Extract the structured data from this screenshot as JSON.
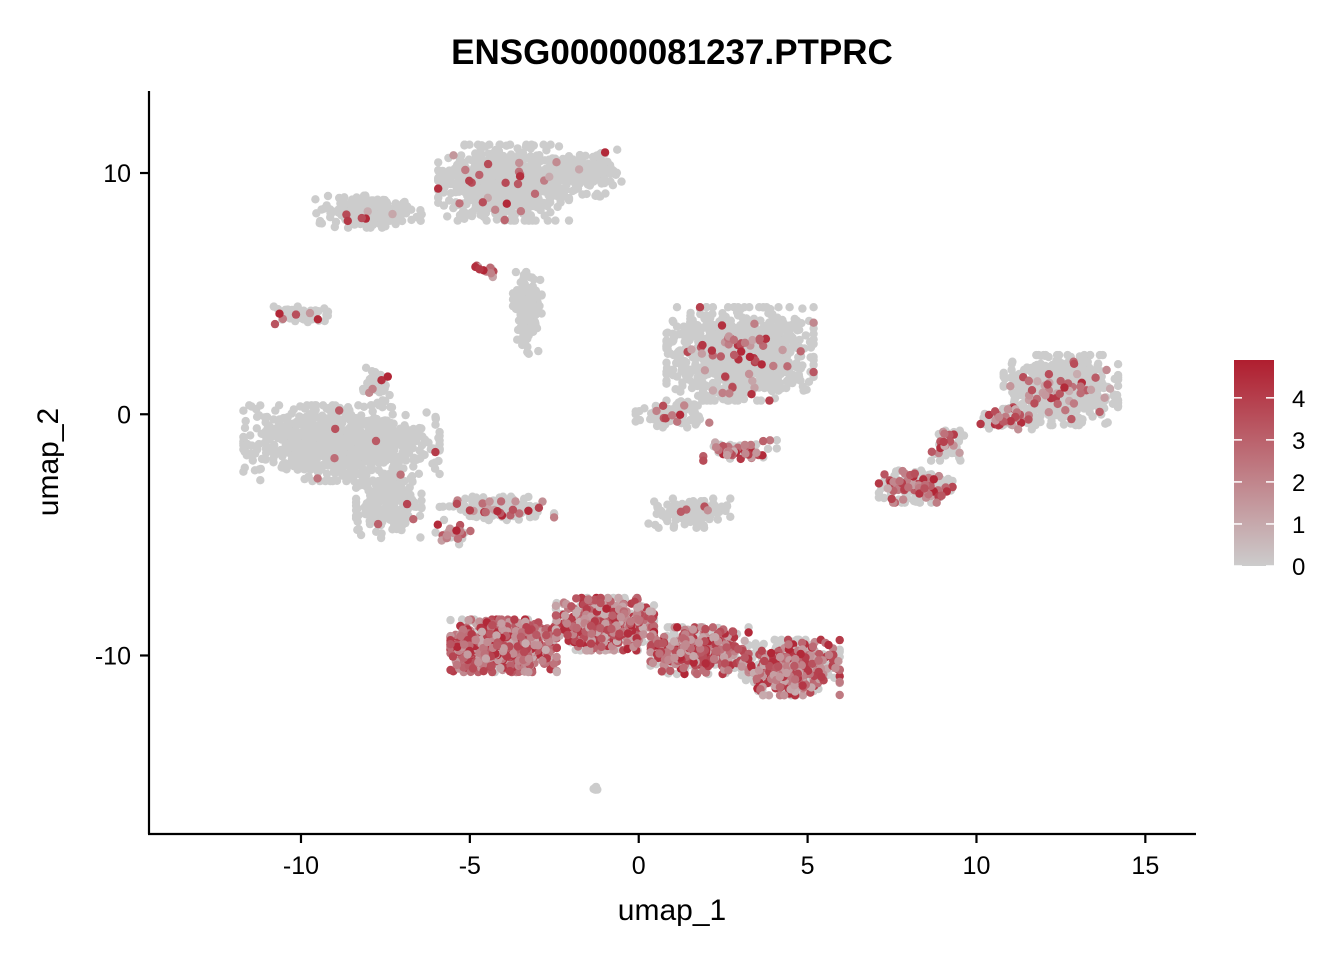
{
  "chart_data": {
    "type": "scatter",
    "title": "ENSG00000081237.PTPRC",
    "xlabel": "umap_1",
    "ylabel": "umap_2",
    "xlim": [
      -14.5,
      16.5
    ],
    "ylim": [
      -17.4,
      13.4
    ],
    "x_ticks": [
      -10,
      -5,
      0,
      5,
      10,
      15
    ],
    "x_tick_labels": [
      "-10",
      "-5",
      "0",
      "5",
      "10",
      "15"
    ],
    "y_ticks": [
      -10,
      0,
      10
    ],
    "y_tick_labels": [
      "-10",
      "0",
      "10"
    ],
    "grid": false,
    "legend": {
      "placement": "right",
      "type": "colorbar",
      "min": 0,
      "max": 4.9,
      "ticks": [
        0,
        1,
        2,
        3,
        4
      ],
      "tick_labels": [
        "0",
        "1",
        "2",
        "3",
        "4"
      ],
      "colors": [
        "#cccccc",
        "#b01e2f"
      ]
    },
    "clusters": [
      {
        "cx": -4.0,
        "cy": 9.6,
        "sx": 1.6,
        "sy": 1.3,
        "n": 900,
        "expr_frac": 0.02
      },
      {
        "cx": -8.0,
        "cy": 8.4,
        "sx": 1.3,
        "sy": 0.55,
        "n": 260,
        "expr_frac": 0.03
      },
      {
        "cx": -1.6,
        "cy": 10.0,
        "sx": 0.9,
        "sy": 0.8,
        "n": 150,
        "expr_frac": 0.02
      },
      {
        "cx": -3.3,
        "cy": 4.2,
        "sx": 0.35,
        "sy": 1.4,
        "n": 140,
        "expr_frac": 0.0
      },
      {
        "cx": -4.5,
        "cy": 6.0,
        "sx": 0.35,
        "sy": 0.3,
        "n": 12,
        "expr_frac": 0.9
      },
      {
        "cx": -10.0,
        "cy": 4.1,
        "sx": 0.8,
        "sy": 0.3,
        "n": 60,
        "expr_frac": 0.12
      },
      {
        "cx": -8.8,
        "cy": -1.2,
        "sx": 2.4,
        "sy": 1.3,
        "n": 900,
        "expr_frac": 0.01
      },
      {
        "cx": -7.4,
        "cy": -3.8,
        "sx": 0.8,
        "sy": 1.1,
        "n": 220,
        "expr_frac": 0.02
      },
      {
        "cx": -7.8,
        "cy": 1.2,
        "sx": 0.35,
        "sy": 0.6,
        "n": 50,
        "expr_frac": 0.05
      },
      {
        "cx": -4.2,
        "cy": -3.9,
        "sx": 1.4,
        "sy": 0.4,
        "n": 200,
        "expr_frac": 0.12
      },
      {
        "cx": -5.5,
        "cy": -5.0,
        "sx": 0.5,
        "sy": 0.35,
        "n": 25,
        "expr_frac": 0.55
      },
      {
        "cx": 3.0,
        "cy": 2.5,
        "sx": 1.8,
        "sy": 1.6,
        "n": 1100,
        "expr_frac": 0.05
      },
      {
        "cx": 1.0,
        "cy": 0.0,
        "sx": 0.9,
        "sy": 0.45,
        "n": 90,
        "expr_frac": 0.08
      },
      {
        "cx": 3.0,
        "cy": -1.5,
        "sx": 0.9,
        "sy": 0.35,
        "n": 60,
        "expr_frac": 0.6
      },
      {
        "cx": 1.5,
        "cy": -4.1,
        "sx": 1.0,
        "sy": 0.5,
        "n": 150,
        "expr_frac": 0.04
      },
      {
        "cx": 12.5,
        "cy": 1.0,
        "sx": 1.4,
        "sy": 1.2,
        "n": 650,
        "expr_frac": 0.05
      },
      {
        "cx": 10.8,
        "cy": -0.2,
        "sx": 0.8,
        "sy": 0.35,
        "n": 80,
        "expr_frac": 0.35
      },
      {
        "cx": 8.2,
        "cy": -3.0,
        "sx": 0.9,
        "sy": 0.55,
        "n": 180,
        "expr_frac": 0.35
      },
      {
        "cx": 9.2,
        "cy": -1.2,
        "sx": 0.45,
        "sy": 0.6,
        "n": 50,
        "expr_frac": 0.3
      },
      {
        "cx": -4.0,
        "cy": -9.6,
        "sx": 1.3,
        "sy": 0.9,
        "n": 900,
        "expr_frac": 0.85
      },
      {
        "cx": -1.0,
        "cy": -8.7,
        "sx": 1.2,
        "sy": 0.9,
        "n": 700,
        "expr_frac": 0.7
      },
      {
        "cx": 1.8,
        "cy": -9.8,
        "sx": 1.2,
        "sy": 0.8,
        "n": 500,
        "expr_frac": 0.6
      },
      {
        "cx": 4.5,
        "cy": -10.5,
        "sx": 1.2,
        "sy": 0.95,
        "n": 650,
        "expr_frac": 0.45
      },
      {
        "cx": -1.3,
        "cy": -15.5,
        "sx": 0.08,
        "sy": 0.06,
        "n": 6,
        "expr_frac": 0.0
      }
    ]
  }
}
